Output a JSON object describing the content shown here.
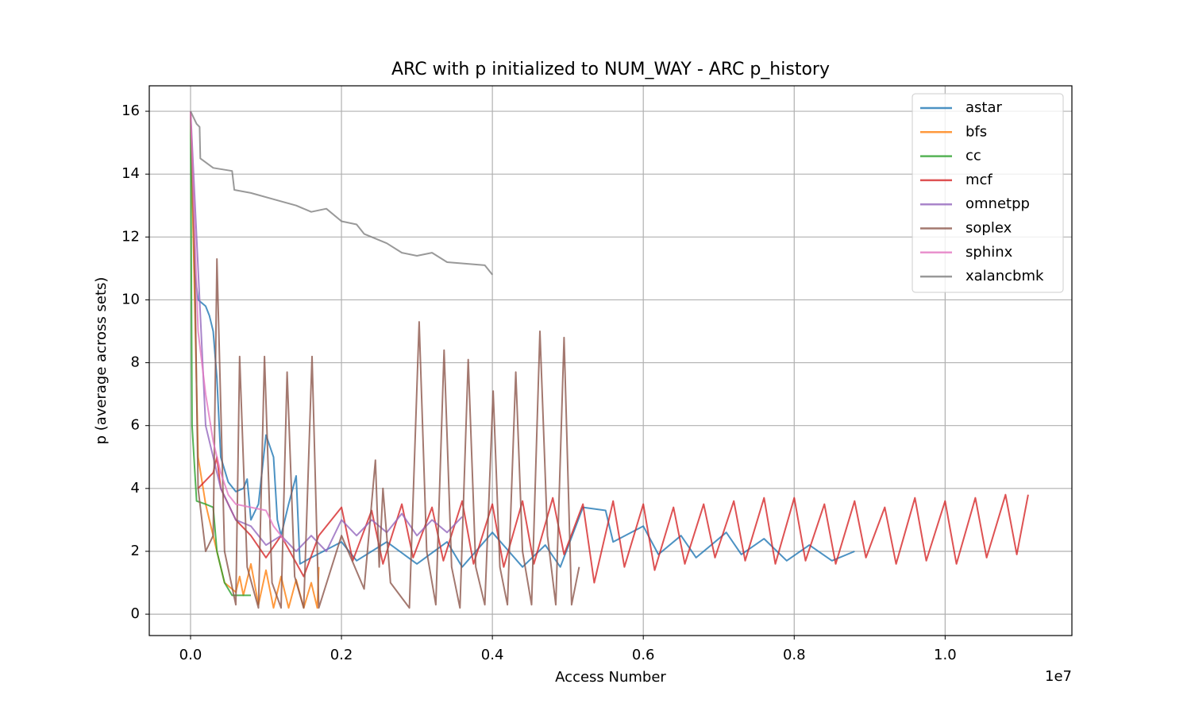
{
  "chart_data": {
    "type": "line",
    "title": "ARC with p initialized to NUM_WAY - ARC p_history",
    "xlabel": "Access Number",
    "ylabel": "p (average across sets)",
    "x_offset_label": "1e7",
    "xlim": [
      -0.0547,
      1.168
    ],
    "ylim": [
      -0.68,
      16.81
    ],
    "xticks": [
      {
        "value": 0,
        "label": "0.0"
      },
      0.2,
      0.4,
      0.6,
      0.8,
      {
        "value": 1,
        "label": "1.0"
      }
    ],
    "yticks": [
      0,
      2,
      4,
      6,
      8,
      10,
      12,
      14,
      16
    ],
    "grid": true,
    "legend": "upper right",
    "series": [
      {
        "name": "astar",
        "color": "#1f77b4",
        "x": [
          0,
          0.005,
          0.01,
          0.02,
          0.025,
          0.03,
          0.035,
          0.04,
          0.05,
          0.06,
          0.07,
          0.075,
          0.08,
          0.09,
          0.1,
          0.11,
          0.115,
          0.12,
          0.13,
          0.14,
          0.145,
          0.16,
          0.2,
          0.22,
          0.26,
          0.3,
          0.34,
          0.36,
          0.4,
          0.44,
          0.47,
          0.49,
          0.52,
          0.55,
          0.56,
          0.6,
          0.62,
          0.65,
          0.67,
          0.71,
          0.73,
          0.76,
          0.79,
          0.82,
          0.85,
          0.88
        ],
        "values": [
          16,
          11,
          10,
          9.8,
          9.5,
          9,
          7.5,
          5,
          4.2,
          3.9,
          4.0,
          4.3,
          3,
          3.5,
          5.7,
          5,
          3,
          2.5,
          3.5,
          4.4,
          1.6,
          1.8,
          2.3,
          1.7,
          2.3,
          1.6,
          2.3,
          1.5,
          2.6,
          1.5,
          2.2,
          1.5,
          3.4,
          3.3,
          2.3,
          2.8,
          1.9,
          2.5,
          1.8,
          2.6,
          1.9,
          2.4,
          1.7,
          2.2,
          1.7,
          2.0
        ]
      },
      {
        "name": "bfs",
        "color": "#ff7f0e",
        "x": [
          0,
          0.01,
          0.02,
          0.035,
          0.045,
          0.06,
          0.065,
          0.07,
          0.08,
          0.09,
          0.1,
          0.11,
          0.12,
          0.13,
          0.14,
          0.15,
          0.16,
          0.168,
          0.17
        ],
        "values": [
          16,
          5,
          3.5,
          2,
          1,
          0.7,
          1.2,
          0.6,
          1.6,
          0.3,
          1.4,
          0.2,
          1.2,
          0.2,
          1.1,
          0.2,
          1.0,
          0.2,
          1.5
        ]
      },
      {
        "name": "cc",
        "color": "#2ca02c",
        "x": [
          0,
          0.002,
          0.008,
          0.02,
          0.03,
          0.035,
          0.045,
          0.055,
          0.08
        ],
        "values": [
          16,
          6,
          3.6,
          3.5,
          3.4,
          2,
          1,
          0.6,
          0.6
        ]
      },
      {
        "name": "mcf",
        "color": "#d62728",
        "x": [
          0.01,
          0.03,
          0.035,
          0.04,
          0.06,
          0.08,
          0.1,
          0.12,
          0.15,
          0.17,
          0.2,
          0.215,
          0.24,
          0.255,
          0.28,
          0.295,
          0.32,
          0.335,
          0.36,
          0.375,
          0.4,
          0.415,
          0.44,
          0.455,
          0.48,
          0.495,
          0.52,
          0.535,
          0.56,
          0.575,
          0.6,
          0.615,
          0.64,
          0.655,
          0.68,
          0.695,
          0.72,
          0.735,
          0.76,
          0.775,
          0.8,
          0.815,
          0.84,
          0.855,
          0.88,
          0.895,
          0.92,
          0.935,
          0.96,
          0.975,
          1.0,
          1.015,
          1.04,
          1.055,
          1.08,
          1.095,
          1.11
        ],
        "values": [
          4,
          4.5,
          5,
          4,
          3,
          2.5,
          1.8,
          2.5,
          1.2,
          2.5,
          3.4,
          1.7,
          3.3,
          1.6,
          3.5,
          1.8,
          3.4,
          1.7,
          3.6,
          1.6,
          3.5,
          1.5,
          3.6,
          1.6,
          3.7,
          1.9,
          3.5,
          1.0,
          3.6,
          1.5,
          3.5,
          1.4,
          3.4,
          1.6,
          3.5,
          1.8,
          3.6,
          1.7,
          3.7,
          1.6,
          3.7,
          1.7,
          3.5,
          1.6,
          3.6,
          1.8,
          3.4,
          1.6,
          3.7,
          1.7,
          3.6,
          1.6,
          3.7,
          1.8,
          3.8,
          1.9,
          3.8
        ]
      },
      {
        "name": "omnetpp",
        "color": "#9467bd",
        "x": [
          0,
          0.02,
          0.04,
          0.06,
          0.08,
          0.1,
          0.12,
          0.14,
          0.16,
          0.18,
          0.2,
          0.22,
          0.24,
          0.26,
          0.28,
          0.3,
          0.32,
          0.34,
          0.36
        ],
        "values": [
          16,
          6,
          4,
          3,
          2.8,
          2.2,
          2.5,
          2,
          2.5,
          2.0,
          3.0,
          2.5,
          3.0,
          2.6,
          3.2,
          2.5,
          3.0,
          2.6,
          3.1
        ]
      },
      {
        "name": "soplex",
        "color": "#8c564b",
        "x": [
          0,
          0.005,
          0.01,
          0.02,
          0.03,
          0.035,
          0.045,
          0.06,
          0.065,
          0.075,
          0.09,
          0.098,
          0.108,
          0.12,
          0.128,
          0.138,
          0.15,
          0.161,
          0.17,
          0.2,
          0.23,
          0.245,
          0.25,
          0.255,
          0.265,
          0.29,
          0.303,
          0.313,
          0.325,
          0.336,
          0.346,
          0.357,
          0.368,
          0.378,
          0.39,
          0.401,
          0.41,
          0.42,
          0.431,
          0.44,
          0.452,
          0.463,
          0.473,
          0.484,
          0.495,
          0.505,
          0.515
        ],
        "values": [
          16,
          12,
          4,
          2,
          2.5,
          11.3,
          2,
          0.3,
          8.2,
          1.5,
          0.2,
          8.2,
          1,
          0.2,
          7.7,
          1.2,
          0.2,
          8.2,
          0.2,
          2.5,
          0.8,
          4.9,
          1.5,
          4,
          1,
          0.2,
          9.3,
          2,
          0.3,
          8.4,
          1.5,
          0.2,
          8.1,
          1.5,
          0.3,
          7.1,
          1.5,
          0.3,
          7.7,
          2,
          0.3,
          9.0,
          2.5,
          0.3,
          8.8,
          0.3,
          1.5
        ]
      },
      {
        "name": "sphinx",
        "color": "#e377c2",
        "x": [
          0,
          0.01,
          0.02,
          0.03,
          0.04,
          0.05,
          0.06,
          0.08,
          0.1,
          0.11,
          0.12,
          0.125
        ],
        "values": [
          16,
          9,
          7,
          5.5,
          4.5,
          3.8,
          3.5,
          3.4,
          3.3,
          2.8,
          2.5,
          2.3
        ]
      },
      {
        "name": "xalancbmk",
        "color": "#7f7f7f",
        "x": [
          0,
          0.008,
          0.012,
          0.013,
          0.03,
          0.055,
          0.058,
          0.08,
          0.11,
          0.14,
          0.16,
          0.18,
          0.2,
          0.22,
          0.23,
          0.26,
          0.28,
          0.3,
          0.32,
          0.34,
          0.39,
          0.4
        ],
        "values": [
          16,
          15.6,
          15.5,
          14.5,
          14.2,
          14.1,
          13.5,
          13.4,
          13.2,
          13.0,
          12.8,
          12.9,
          12.5,
          12.4,
          12.1,
          11.8,
          11.5,
          11.4,
          11.5,
          11.2,
          11.1,
          10.8
        ]
      }
    ]
  }
}
